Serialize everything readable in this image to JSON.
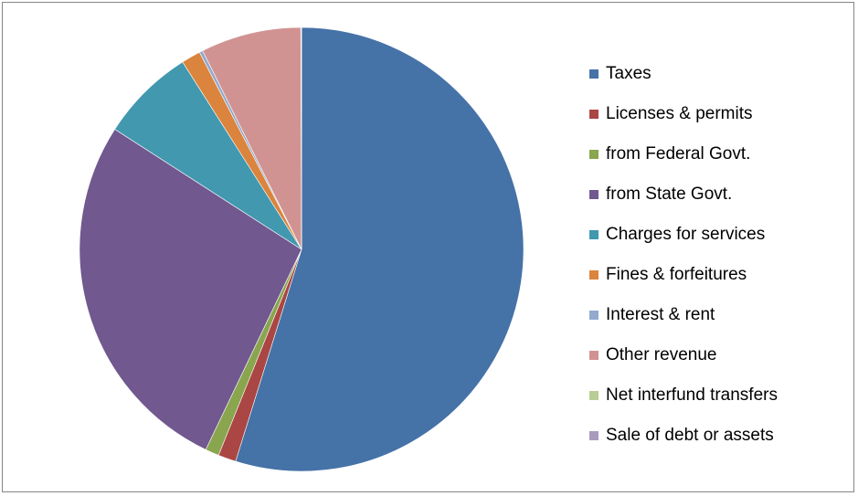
{
  "chart_data": {
    "type": "pie",
    "categories": [
      "Taxes",
      "Licenses & permits",
      "from Federal Govt.",
      "from State Govt.",
      "Charges for services",
      "Fines & forfeitures",
      "Interest & rent",
      "Other revenue",
      "Net interfund transfers",
      "Sale of debt or assets"
    ],
    "values": [
      54.8,
      1.3,
      1.0,
      27.0,
      6.9,
      1.4,
      0.25,
      7.3,
      0.02,
      0.03
    ],
    "unit": "%",
    "colors": [
      "#4572A7",
      "#AA4643",
      "#89A54E",
      "#71588F",
      "#4198AF",
      "#DB843D",
      "#93A9CF",
      "#D19392",
      "#B9CD96",
      "#A99BBD"
    ],
    "start_angle": "top, clockwise",
    "title": "",
    "legend_position": "right"
  }
}
